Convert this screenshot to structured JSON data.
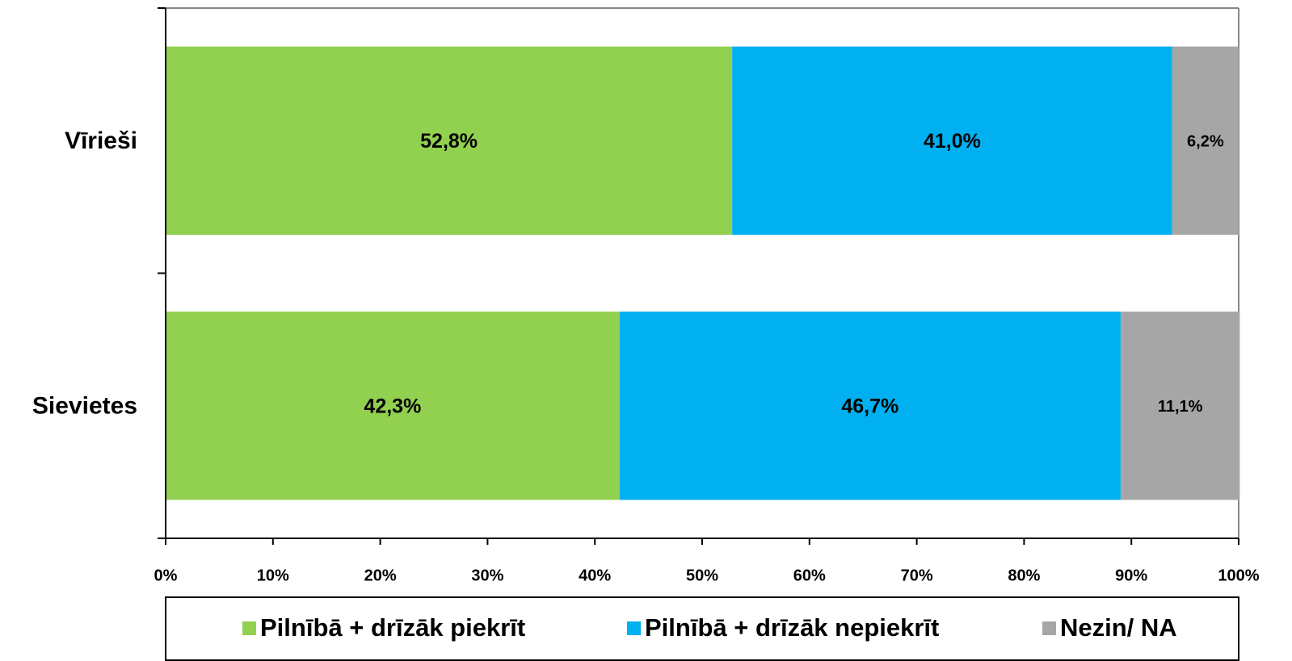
{
  "chart_data": {
    "type": "stacked_bar_horizontal",
    "categories": [
      "Vīrieši",
      "Sievietes"
    ],
    "series": [
      {
        "name": "Pilnībā + drīzāk piekrīt",
        "color": "#92d050",
        "values": [
          52.8,
          42.3
        ],
        "value_labels": [
          "52,8%",
          "42,3%"
        ]
      },
      {
        "name": "Pilnībā + drīzāk nepiekrīt",
        "color": "#00b0f0",
        "values": [
          41.0,
          46.7
        ],
        "value_labels": [
          "41,0%",
          "46,7%"
        ]
      },
      {
        "name": "Nezin/ NA",
        "color": "#a6a6a6",
        "values": [
          6.2,
          11.1
        ],
        "value_labels": [
          "6,2%",
          "11,1%"
        ]
      }
    ],
    "xlim": [
      0,
      100
    ],
    "xticks": [
      {
        "value": 0,
        "label": "0%"
      },
      {
        "value": 10,
        "label": "10%"
      },
      {
        "value": 20,
        "label": "20%"
      },
      {
        "value": 30,
        "label": "30%"
      },
      {
        "value": 40,
        "label": "40%"
      },
      {
        "value": 50,
        "label": "50%"
      },
      {
        "value": 60,
        "label": "60%"
      },
      {
        "value": 70,
        "label": "70%"
      },
      {
        "value": 80,
        "label": "80%"
      },
      {
        "value": 90,
        "label": "90%"
      },
      {
        "value": 100,
        "label": "100%"
      }
    ],
    "legend": "bottom"
  }
}
